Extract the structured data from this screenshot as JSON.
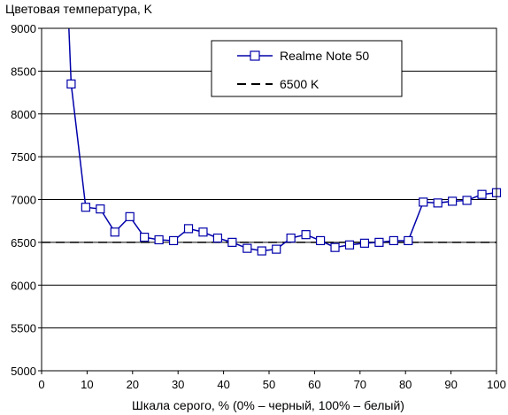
{
  "chart_data": {
    "type": "line",
    "title": "Цветовая температура, K",
    "xlabel": "Шкала серого, % (0% – черный, 100% – белый)",
    "ylabel": "",
    "xlim": [
      0,
      100
    ],
    "ylim": [
      5000,
      9000
    ],
    "xticks": [
      0,
      10,
      20,
      30,
      40,
      50,
      60,
      70,
      80,
      90,
      100
    ],
    "yticks": [
      5000,
      5500,
      6000,
      6500,
      7000,
      7500,
      8000,
      8500,
      9000
    ],
    "grid": "horizontal",
    "legend_position": "top-right",
    "series": [
      {
        "name": "Realme Note 50",
        "color": "#0000aa",
        "marker": "square",
        "x": [
          6,
          6.5,
          9.7,
          12.9,
          16.1,
          19.4,
          22.6,
          25.8,
          29.0,
          32.3,
          35.5,
          38.7,
          41.9,
          45.2,
          48.4,
          51.6,
          54.8,
          58.1,
          61.3,
          64.5,
          67.7,
          71.0,
          74.2,
          77.4,
          80.6,
          83.9,
          87.1,
          90.3,
          93.5,
          96.8,
          100
        ],
        "y": [
          9000,
          8350,
          6910,
          6890,
          6620,
          6800,
          6560,
          6530,
          6520,
          6660,
          6620,
          6550,
          6500,
          6430,
          6400,
          6420,
          6550,
          6590,
          6520,
          6440,
          6470,
          6490,
          6500,
          6520,
          6520,
          6970,
          6960,
          6980,
          6990,
          7060,
          7080
        ]
      },
      {
        "name": "6500 K",
        "color": "#000000",
        "style": "dashed",
        "x": [
          0,
          100
        ],
        "y": [
          6500,
          6500
        ]
      }
    ]
  }
}
